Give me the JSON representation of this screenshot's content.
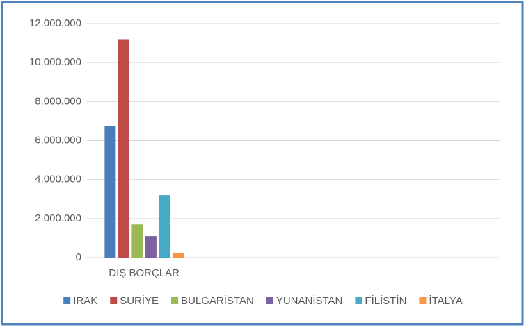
{
  "chart_data": {
    "type": "bar",
    "categories": [
      "DIŞ BORÇLAR",
      null,
      null,
      null
    ],
    "series": [
      {
        "name": "IRAK",
        "color": "#4a7ebb",
        "values": [
          6750000,
          null,
          null,
          null
        ]
      },
      {
        "name": "SURİYE",
        "color": "#be4b48",
        "values": [
          11200000,
          null,
          null,
          null
        ]
      },
      {
        "name": "BULGARİSTAN",
        "color": "#98b954",
        "values": [
          1700000,
          null,
          null,
          null
        ]
      },
      {
        "name": "YUNANİSTAN",
        "color": "#7d60a0",
        "values": [
          1100000,
          null,
          null,
          null
        ]
      },
      {
        "name": "FİLİSTİN",
        "color": "#46aac5",
        "values": [
          3200000,
          null,
          null,
          null
        ]
      },
      {
        "name": "İTALYA",
        "color": "#f79646",
        "values": [
          250000,
          null,
          null,
          null
        ]
      }
    ],
    "ylim": [
      0,
      12000000
    ],
    "yticks": [
      0,
      {
        "value": 2000000,
        "label": "2.000.000"
      },
      {
        "value": 4000000,
        "label": "4.000.000"
      },
      {
        "value": 6000000,
        "label": "6.000.000"
      },
      {
        "value": 8000000,
        "label": "8.000.000"
      },
      {
        "value": 10000000,
        "label": "10.000.000"
      },
      {
        "value": 12000000,
        "label": "12.000.000"
      }
    ],
    "grid": true,
    "legend": "bottom"
  }
}
